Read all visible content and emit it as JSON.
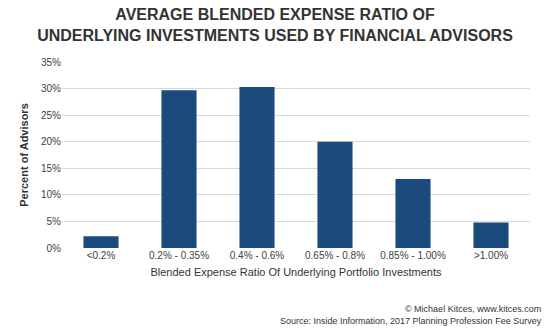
{
  "chart_data": {
    "type": "bar",
    "title": "AVERAGE BLENDED EXPENSE RATIO OF\nUNDERLYING INVESTMENTS USED BY FINANCIAL ADVISORS",
    "x_label": "Blended Expense Ratio Of Underlying Portfolio Investments",
    "y_label": "Percent of Advisors",
    "categories": [
      "<0.2%",
      "0.2% - 0.35%",
      "0.4% - 0.6%",
      "0.65% - 0.8%",
      "0.85% - 1.00%",
      ">1.00%"
    ],
    "values": [
      2.2,
      29.7,
      30.3,
      20,
      13,
      4.8
    ],
    "color": "#1a4b7c",
    "ylim": [
      0,
      35
    ],
    "yticks": [
      {
        "value": 0,
        "label": "0%"
      },
      {
        "value": 5,
        "label": "5%"
      },
      {
        "value": 10,
        "label": "10%"
      },
      {
        "value": 15,
        "label": "15%"
      },
      {
        "value": 20,
        "label": "20%"
      },
      {
        "value": 25,
        "label": "25%"
      },
      {
        "value": 30,
        "label": "30%"
      },
      {
        "value": 35,
        "label": "35%"
      }
    ],
    "grid": true,
    "annotations": [
      "© Michael Kitces, www.kitces.com",
      "Source: Inside Information, 2017 Planning Profession Fee Survey"
    ]
  }
}
